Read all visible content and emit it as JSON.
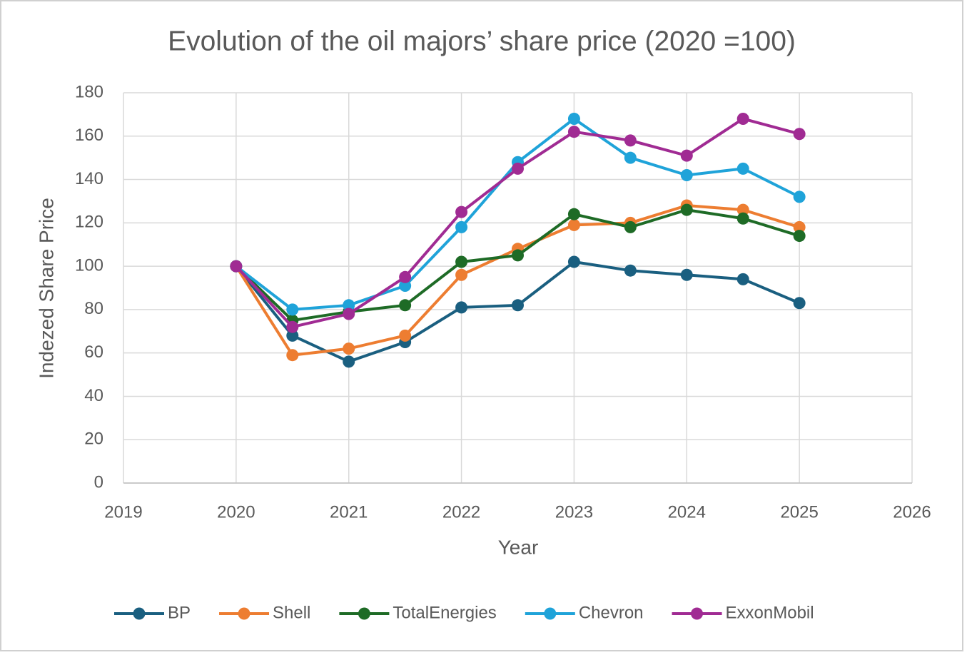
{
  "chart_data": {
    "type": "line",
    "title": "Evolution of the oil majors’ share price (2020 =100)",
    "x_label": "Year",
    "y_label": "Indezed Share Price",
    "x": [
      2020,
      2020.5,
      2021,
      2021.5,
      2022,
      2022.5,
      2023,
      2023.5,
      2024,
      2024.5,
      2025
    ],
    "series": [
      {
        "name": "BP",
        "color": "#1a5f80",
        "values": [
          100,
          68,
          56,
          65,
          81,
          82,
          102,
          98,
          96,
          94,
          83
        ]
      },
      {
        "name": "Shell",
        "color": "#ed7d31",
        "values": [
          100,
          59,
          62,
          68,
          96,
          108,
          119,
          120,
          128,
          126,
          118
        ]
      },
      {
        "name": "TotalEnergies",
        "color": "#1e6b26",
        "values": [
          100,
          75,
          79,
          82,
          102,
          105,
          124,
          118,
          126,
          122,
          114
        ]
      },
      {
        "name": "Chevron",
        "color": "#1fa3d9",
        "values": [
          100,
          80,
          82,
          91,
          118,
          148,
          168,
          150,
          142,
          145,
          132
        ]
      },
      {
        "name": "ExxonMobil",
        "color": "#a02b93",
        "values": [
          100,
          72,
          78,
          95,
          125,
          145,
          162,
          158,
          151,
          168,
          161
        ]
      }
    ],
    "xlim": [
      2019,
      2026
    ],
    "xticks": [
      2019,
      2020,
      2021,
      2022,
      2023,
      2024,
      2025,
      2026
    ],
    "ylim": [
      0,
      180
    ],
    "yticks": [
      0,
      20,
      40,
      60,
      80,
      100,
      120,
      140,
      160,
      180
    ],
    "grid": true,
    "legend": "bottom"
  }
}
